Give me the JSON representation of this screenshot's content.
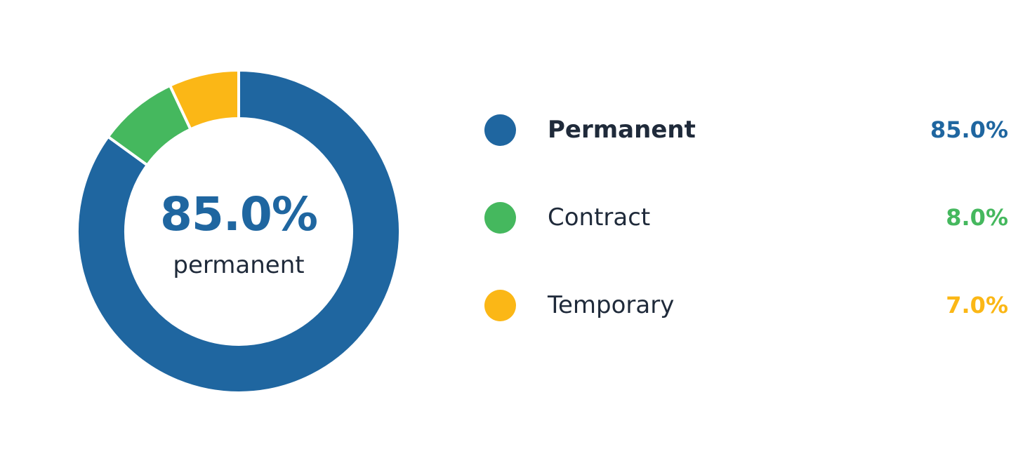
{
  "chart_data": {
    "type": "pie",
    "style": "donut",
    "categories": [
      "Permanent",
      "Contract",
      "Temporary"
    ],
    "values": [
      85.0,
      8.0,
      7.0
    ],
    "value_labels": [
      "85.0%",
      "8.0%",
      "7.0%"
    ],
    "colors": [
      "#1f66a0",
      "#45b85e",
      "#fbb716"
    ],
    "highlighted_category": "Permanent",
    "center_value": "85.0%",
    "center_caption": "permanent",
    "legend_position": "right"
  },
  "colors": {
    "text_dark": "#1f2a3a",
    "background": "#ffffff"
  }
}
